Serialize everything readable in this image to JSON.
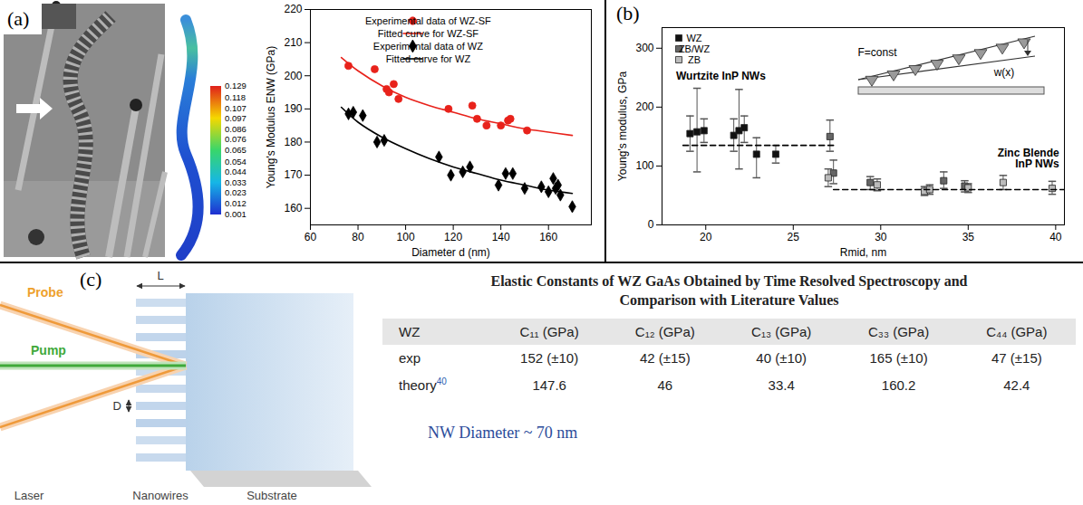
{
  "panel_labels": [
    "(a)",
    "(b)",
    "(c)"
  ],
  "image_a": {
    "colorbar": {
      "range": [
        0.001,
        0.129
      ],
      "ticks": [
        0.129,
        0.118,
        0.107,
        0.097,
        0.086,
        0.076,
        0.065,
        0.054,
        0.044,
        0.033,
        0.023,
        0.012,
        0.001
      ]
    }
  },
  "chart_data": [
    {
      "type": "scatter",
      "xlabel": "Diameter d (nm)",
      "ylabel": "Young's Modulus ENW (GPa)",
      "xlim": [
        60,
        178
      ],
      "xticks": [
        60,
        80,
        100,
        120,
        140,
        160
      ],
      "ylim": [
        155,
        220
      ],
      "yticks": [
        160,
        170,
        180,
        190,
        200,
        210,
        220
      ],
      "legend": "upper right",
      "series": [
        {
          "name": "Experimental data of WZ-SF",
          "type": "scatter",
          "marker": "circle",
          "color": "#e8221b",
          "x": [
            76,
            87,
            92,
            93,
            95,
            97,
            118,
            128,
            130,
            134,
            140,
            143,
            144,
            151
          ],
          "values": [
            203,
            202,
            196,
            195,
            197.5,
            193,
            190,
            191,
            187,
            185,
            185,
            186.5,
            187,
            183.5
          ]
        },
        {
          "name": "Fitted curve for WZ-SF",
          "type": "line",
          "color": "#e8221b",
          "x": [
            73,
            80,
            90,
            100,
            110,
            120,
            130,
            140,
            150,
            160,
            170
          ],
          "values": [
            205.5,
            201.5,
            197,
            193.5,
            191,
            189,
            187,
            185.5,
            184,
            183,
            182
          ]
        },
        {
          "name": "Experimental data of WZ",
          "type": "scatter",
          "marker": "diamond",
          "color": "#000000",
          "x": [
            76,
            78,
            82,
            88,
            91,
            114,
            119,
            124,
            127,
            139,
            142,
            145,
            150,
            157,
            160,
            162,
            163,
            164,
            165,
            170
          ],
          "values": [
            188.5,
            189,
            188,
            180,
            180.5,
            175.5,
            170,
            171,
            172.5,
            167,
            170.5,
            170.5,
            166,
            166.5,
            165,
            169,
            166,
            167,
            164,
            160.5
          ]
        },
        {
          "name": "Fitted curve for WZ",
          "type": "line",
          "color": "#000000",
          "x": [
            73,
            80,
            90,
            100,
            110,
            120,
            130,
            140,
            150,
            160,
            170
          ],
          "values": [
            190.5,
            186,
            181.5,
            178,
            175,
            172.5,
            170.5,
            168.5,
            167,
            165.5,
            164.5
          ]
        }
      ]
    },
    {
      "type": "scatter",
      "xlabel": "Rmid, nm",
      "ylabel": "Young's modulus, GPa",
      "xlim": [
        17.5,
        40.5
      ],
      "xticks": [
        20,
        25,
        30,
        35,
        40
      ],
      "ylim": [
        0,
        335
      ],
      "yticks": [
        0,
        100,
        200,
        300
      ],
      "legend": "upper left",
      "series": [
        {
          "name": "WZ",
          "type": "scatter",
          "marker": "square",
          "color": "#111111",
          "x": [
            19.1,
            19.5,
            19.9,
            21.6,
            21.9,
            22.2,
            22.9,
            24.0
          ],
          "values": [
            155,
            158,
            160,
            152,
            160,
            165,
            120,
            120
          ],
          "error_bars": [
            [
              125,
              185
            ],
            [
              90,
              232
            ],
            [
              140,
              180
            ],
            [
              125,
              180
            ],
            [
              95,
              230
            ],
            [
              140,
              185
            ],
            [
              80,
              148
            ],
            [
              105,
              135
            ]
          ]
        },
        {
          "name": "ZB/WZ",
          "type": "scatter",
          "marker": "square",
          "color": "#666666",
          "x": [
            27.1,
            27.3,
            29.4,
            33.6,
            34.8
          ],
          "values": [
            150,
            88,
            72,
            75,
            66
          ],
          "error_bars": [
            [
              125,
              178
            ],
            [
              70,
              110
            ],
            [
              60,
              82
            ],
            [
              62,
              90
            ],
            [
              56,
              75
            ]
          ]
        },
        {
          "name": "ZB",
          "type": "scatter",
          "marker": "square",
          "color": "#bbbbbb",
          "x": [
            27.0,
            29.8,
            32.5,
            32.8,
            35.0,
            37.0,
            39.8
          ],
          "values": [
            80,
            68,
            57,
            60,
            63,
            72,
            62
          ],
          "error_bars": [
            [
              65,
              95
            ],
            [
              58,
              78
            ],
            [
              50,
              65
            ],
            [
              52,
              68
            ],
            [
              55,
              70
            ],
            [
              60,
              84
            ],
            [
              52,
              74
            ]
          ]
        },
        {
          "type": "line",
          "line_style": "dashed",
          "color": "#000000",
          "x": [
            18.7,
            27.3
          ],
          "values": [
            135,
            135
          ]
        },
        {
          "type": "line",
          "line_style": "dashed",
          "color": "#000000",
          "x": [
            27.3,
            40.5
          ],
          "values": [
            60,
            60
          ]
        }
      ],
      "annotations": [
        {
          "text": "Wurtzite InP NWs",
          "x": 18.3,
          "y": 246
        },
        {
          "text": "Zinc Blende InP NWs",
          "x": 40.2,
          "y": 112
        }
      ],
      "inset_labels": [
        "F=const",
        "w(x)"
      ]
    }
  ],
  "diagram_c": {
    "probe": "Probe",
    "pump": "Pump",
    "length": "L",
    "diameter": "D",
    "laser": "Laser",
    "nanowires": "Nanowires",
    "substrate": "Substrate"
  },
  "table_c": {
    "title": "Elastic Constants of WZ GaAs Obtained by Time Resolved Spectroscopy and Comparison with Literature Values",
    "header": [
      "WZ",
      "C₁₁ (GPa)",
      "C₁₂ (GPa)",
      "C₁₃ (GPa)",
      "C₃₃ (GPa)",
      "C₄₄ (GPa)"
    ],
    "rows": [
      [
        {
          "text": "exp"
        },
        "152 (±10)",
        "42 (±15)",
        "40 (±10)",
        "165 (±10)",
        "47 (±15)"
      ],
      [
        {
          "text": "theory",
          "ref": "40"
        },
        "147.6",
        "46",
        "33.4",
        "160.2",
        "42.4"
      ]
    ],
    "note": "NW Diameter ~ 70 nm"
  }
}
